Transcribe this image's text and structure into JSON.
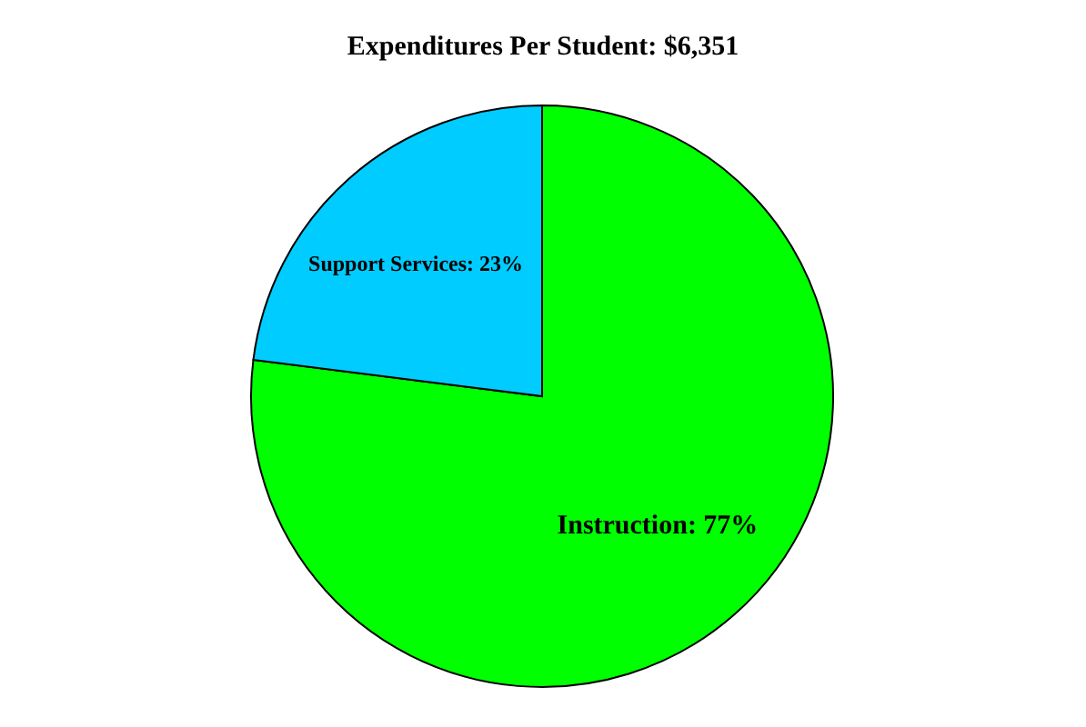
{
  "chart_data": {
    "type": "pie",
    "title": "Expenditures Per Student: $6,351",
    "categories": [
      "Instruction",
      "Support Services"
    ],
    "values": [
      77,
      23
    ],
    "value_labels": [
      "77%",
      "23%"
    ],
    "colors": [
      "#00ff00",
      "#00ccff"
    ],
    "legend": false
  }
}
